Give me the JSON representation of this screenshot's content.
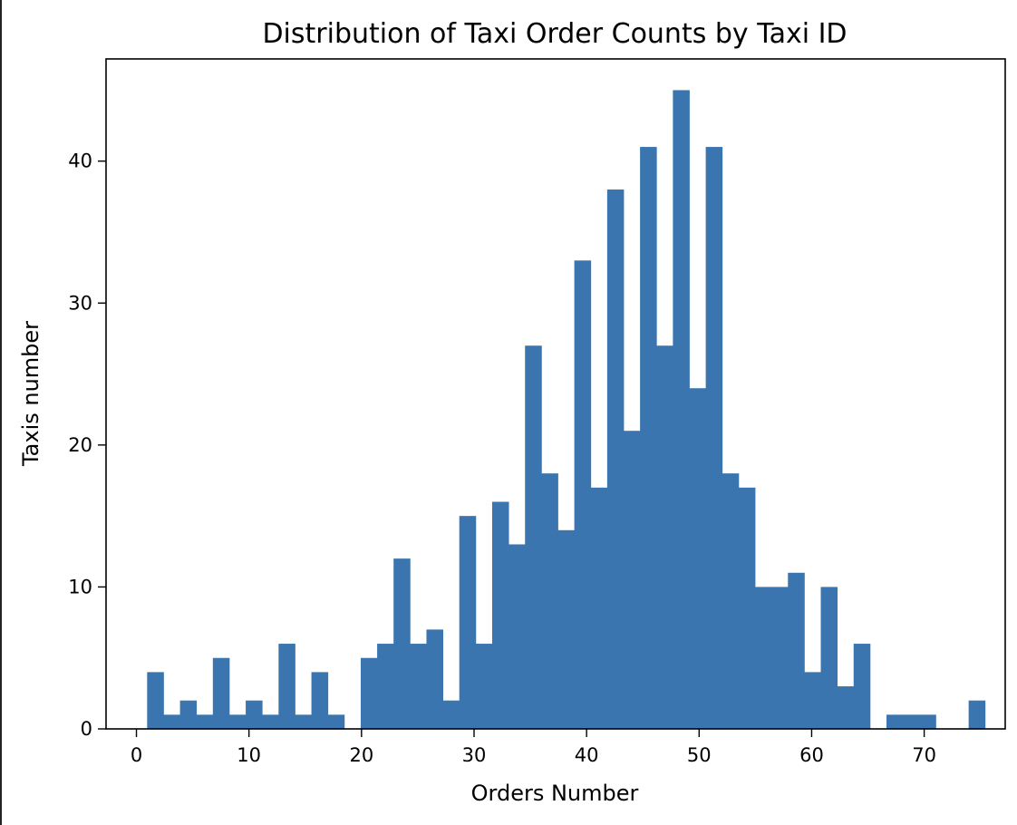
{
  "chart_data": {
    "type": "bar",
    "title": "Distribution of Taxi Order Counts by Taxi ID",
    "xlabel": "Orders Number",
    "ylabel": "Taxis number",
    "xlim": [
      -2.7,
      77.2
    ],
    "ylim": [
      0,
      47.2
    ],
    "xticks": [
      0,
      10,
      20,
      30,
      40,
      50,
      60,
      70
    ],
    "yticks": [
      0,
      10,
      20,
      30,
      40
    ],
    "bin_width": 1.46,
    "bin_start": 0.95,
    "values": [
      4,
      1,
      2,
      1,
      5,
      1,
      2,
      1,
      6,
      1,
      4,
      1,
      0,
      5,
      6,
      12,
      6,
      7,
      2,
      15,
      6,
      16,
      13,
      27,
      18,
      14,
      33,
      17,
      38,
      21,
      41,
      27,
      45,
      24,
      41,
      18,
      17,
      10,
      10,
      11,
      4,
      10,
      3,
      6,
      0,
      1,
      1,
      1,
      0,
      0,
      2
    ],
    "bar_color": "#3a75af",
    "grid": false
  }
}
